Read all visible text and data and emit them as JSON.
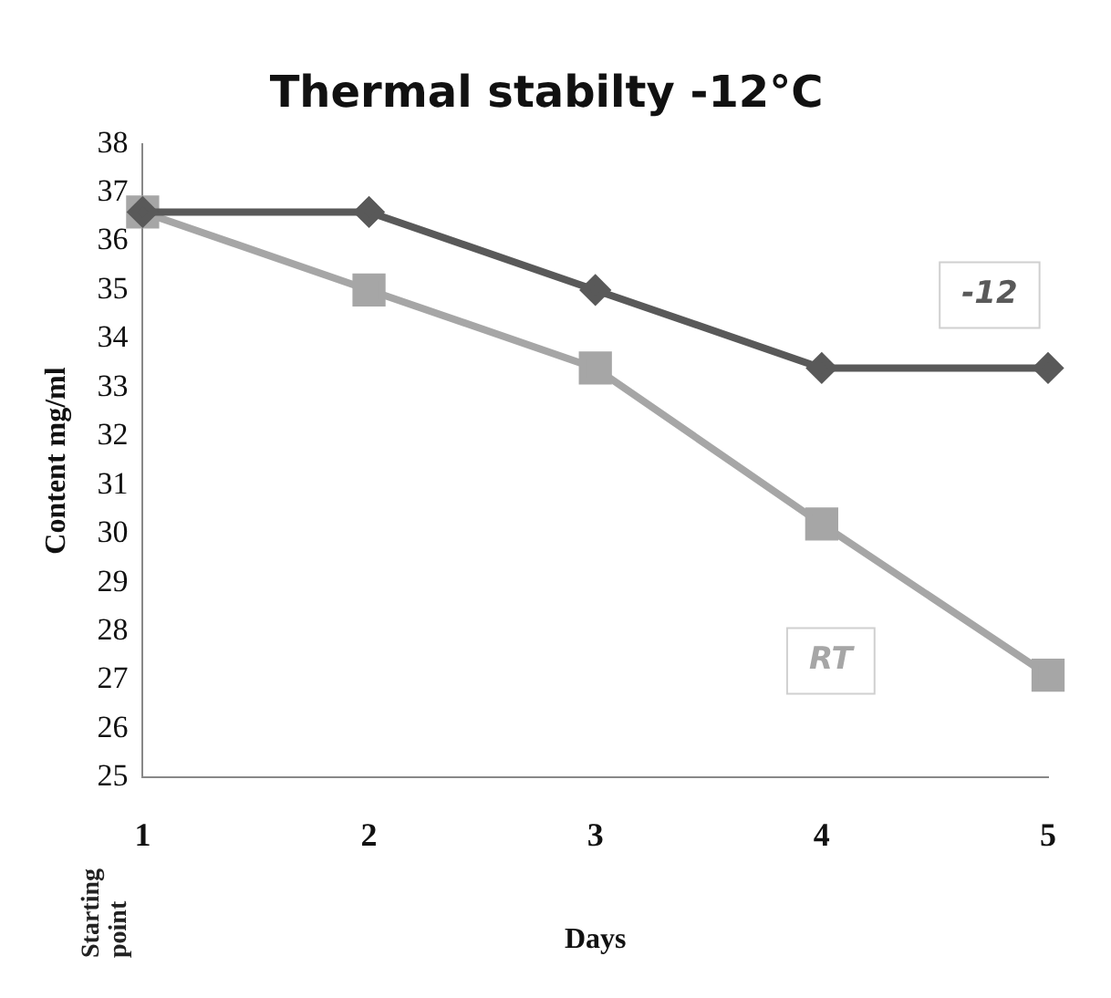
{
  "chart_data": {
    "type": "line",
    "title": "Thermal stabilty -12°C",
    "xlabel": "Days",
    "ylabel": "Content mg/ml",
    "categories": [
      "1",
      "2",
      "3",
      "4",
      "5"
    ],
    "series": [
      {
        "name": "-12",
        "color": "#595959",
        "marker": "diamond",
        "values": [
          36.6,
          36.6,
          35.0,
          33.4,
          33.4
        ]
      },
      {
        "name": "RT",
        "color": "#a6a6a6",
        "marker": "square",
        "values": [
          36.6,
          35.0,
          33.4,
          30.2,
          27.1
        ]
      }
    ],
    "ylim": [
      25,
      38
    ],
    "yticks": [
      25,
      26,
      27,
      28,
      29,
      30,
      31,
      32,
      33,
      34,
      35,
      36,
      37,
      38
    ],
    "grid": false,
    "legend": false,
    "line_style": "solid",
    "annotations": [
      "Starting point"
    ]
  }
}
